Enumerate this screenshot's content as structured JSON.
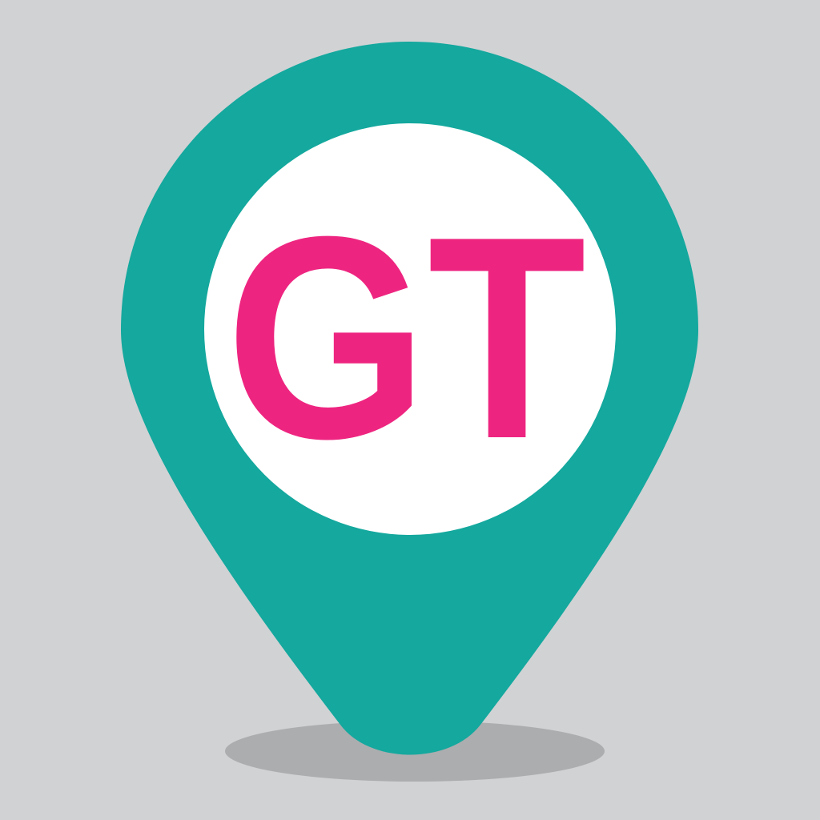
{
  "logo": {
    "text": "GT",
    "icon": "map-pin-icon",
    "colors": {
      "background": "#d1d2d4",
      "pin": "#14a89e",
      "inner_circle": "#ffffff",
      "text": "#ee2580",
      "shadow": "#acadaf"
    }
  }
}
